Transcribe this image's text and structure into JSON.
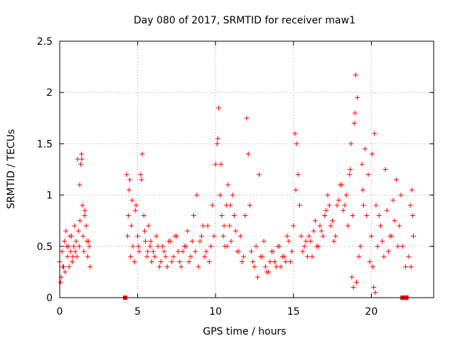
{
  "chart_data": {
    "type": "scatter",
    "title": "Day 080 of 2017, SRMTID for receiver maw1",
    "xlabel": "GPS time / hours",
    "ylabel": "SRMTID / TECUs",
    "xlim": [
      0,
      24
    ],
    "ylim": [
      0,
      2.5
    ],
    "grid": true,
    "marker": "plus",
    "color": "#ff0000",
    "x_ticks": [
      0,
      5,
      10,
      15,
      20
    ],
    "x_tick_labels": [
      "0",
      "5",
      "10",
      "15",
      "20"
    ],
    "y_ticks": [
      0,
      0.5,
      1,
      1.5,
      2,
      2.5
    ],
    "y_tick_labels": [
      "0",
      "0.5",
      "1",
      "1.5",
      "2",
      "2.5"
    ],
    "series": [
      {
        "name": "SRMTID",
        "x": [
          0.0,
          0.1,
          0.15,
          0.2,
          0.3,
          0.35,
          0.4,
          0.5,
          0.55,
          0.6,
          0.7,
          0.75,
          0.8,
          0.9,
          0.95,
          1.0,
          1.05,
          1.1,
          1.2,
          1.25,
          1.3,
          1.35,
          1.4,
          1.45,
          1.5,
          1.55,
          1.6,
          1.7,
          1.75,
          1.8,
          1.9,
          1.95,
          4.3,
          4.35,
          4.4,
          4.5,
          4.55,
          4.6,
          4.7,
          4.8,
          4.9,
          5.0,
          5.1,
          5.2,
          5.3,
          5.4,
          5.5,
          5.6,
          5.7,
          5.8,
          5.9,
          6.0,
          6.2,
          6.4,
          6.6,
          6.8,
          7.0,
          7.2,
          7.4,
          7.6,
          7.8,
          8.0,
          8.2,
          8.4,
          8.6,
          8.8,
          9.0,
          9.2,
          9.4,
          9.6,
          9.8,
          10.0,
          10.1,
          10.2,
          10.3,
          10.4,
          10.5,
          10.6,
          10.7,
          10.8,
          10.9,
          11.0,
          11.2,
          11.4,
          11.6,
          11.8,
          12.0,
          12.1,
          12.2,
          12.4,
          12.6,
          12.8,
          13.0,
          13.2,
          13.4,
          13.6,
          13.8,
          14.0,
          14.2,
          14.4,
          14.6,
          14.8,
          15.0,
          15.1,
          15.2,
          15.3,
          15.4,
          15.6,
          15.8,
          16.0,
          16.2,
          16.4,
          16.6,
          16.8,
          17.0,
          17.2,
          17.4,
          17.6,
          17.8,
          18.0,
          18.2,
          18.4,
          18.6,
          18.7,
          18.8,
          18.9,
          19.0,
          19.1,
          19.2,
          19.4,
          19.5,
          19.6,
          19.8,
          20.0,
          20.1,
          20.2,
          20.3,
          20.4,
          20.6,
          20.8,
          21.0,
          21.2,
          21.4,
          21.6,
          21.8,
          21.9,
          22.0,
          22.2,
          22.4,
          22.5,
          22.6,
          22.7,
          0.05,
          0.25,
          0.45,
          0.65,
          0.85,
          1.15,
          1.28,
          1.42,
          1.62,
          1.85,
          4.45,
          4.65,
          4.85,
          5.05,
          5.25,
          5.45,
          5.65,
          5.85,
          6.1,
          6.3,
          6.5,
          6.7,
          6.9,
          7.1,
          7.3,
          7.5,
          7.7,
          7.9,
          8.1,
          8.3,
          8.5,
          8.7,
          8.9,
          9.1,
          9.3,
          9.5,
          9.7,
          9.9,
          10.15,
          10.35,
          10.55,
          10.75,
          10.95,
          11.1,
          11.3,
          11.5,
          11.7,
          11.9,
          12.3,
          12.5,
          12.7,
          12.9,
          13.1,
          13.3,
          13.5,
          13.7,
          13.9,
          14.1,
          14.3,
          14.5,
          14.7,
          14.9,
          15.15,
          15.5,
          15.7,
          15.9,
          16.1,
          16.3,
          16.5,
          16.7,
          16.9,
          17.1,
          17.3,
          17.5,
          17.7,
          17.9,
          18.1,
          18.3,
          18.5,
          18.65,
          18.75,
          18.85,
          18.95,
          19.05,
          19.3,
          19.45,
          19.7,
          19.9,
          20.05,
          20.15,
          20.25,
          20.5,
          20.7,
          20.9,
          21.1,
          21.3,
          21.5,
          21.7,
          22.1,
          22.3,
          22.55,
          22.65
        ],
        "y": [
          0.35,
          0.2,
          0.45,
          0.3,
          0.55,
          0.25,
          0.65,
          0.4,
          0.5,
          0.3,
          0.45,
          0.6,
          0.35,
          0.5,
          0.7,
          0.45,
          0.55,
          0.4,
          0.65,
          0.5,
          0.75,
          1.3,
          1.4,
          0.9,
          0.6,
          0.45,
          0.8,
          0.7,
          0.55,
          0.4,
          0.5,
          0.3,
          1.2,
          0.6,
          0.8,
          1.15,
          0.4,
          0.7,
          0.5,
          0.35,
          0.9,
          0.6,
          0.45,
          1.2,
          1.4,
          0.8,
          0.55,
          0.4,
          0.7,
          0.5,
          0.35,
          0.45,
          0.6,
          0.3,
          0.5,
          0.4,
          0.55,
          0.35,
          0.6,
          0.45,
          0.3,
          0.5,
          0.65,
          0.4,
          0.8,
          1.0,
          0.55,
          0.7,
          0.45,
          0.35,
          0.9,
          1.3,
          1.5,
          1.85,
          1.0,
          0.8,
          0.6,
          0.5,
          0.9,
          1.1,
          0.7,
          0.55,
          0.8,
          0.45,
          0.6,
          0.4,
          1.75,
          1.4,
          0.9,
          0.35,
          0.5,
          1.2,
          0.4,
          0.3,
          0.25,
          0.45,
          0.35,
          0.5,
          0.3,
          0.4,
          0.6,
          0.35,
          0.7,
          1.6,
          1.5,
          1.2,
          0.9,
          0.45,
          0.55,
          0.6,
          0.4,
          0.75,
          0.5,
          0.65,
          0.8,
          1.0,
          0.7,
          0.55,
          0.9,
          1.1,
          0.85,
          1.0,
          1.2,
          1.5,
          0.8,
          1.7,
          2.17,
          1.95,
          0.4,
          1.3,
          0.9,
          1.45,
          1.2,
          0.6,
          0.3,
          1.6,
          0.9,
          0.5,
          0.7,
          0.4,
          0.85,
          0.6,
          0.95,
          1.15,
          0.7,
          1.0,
          0.5,
          0.3,
          0.4,
          0.9,
          1.05,
          0.6,
          0.15,
          0.3,
          0.5,
          0.6,
          0.4,
          1.35,
          1.1,
          1.35,
          0.85,
          0.55,
          1.05,
          0.95,
          0.85,
          0.5,
          1.15,
          0.65,
          0.45,
          0.55,
          0.4,
          0.5,
          0.35,
          0.45,
          0.3,
          0.55,
          0.4,
          0.6,
          0.35,
          0.45,
          0.5,
          0.35,
          0.55,
          0.45,
          0.3,
          0.6,
          0.4,
          0.7,
          0.5,
          0.6,
          1.55,
          1.3,
          0.7,
          0.5,
          0.9,
          1.0,
          0.65,
          0.45,
          0.35,
          0.8,
          0.45,
          0.3,
          0.2,
          0.4,
          0.55,
          0.25,
          0.35,
          0.45,
          0.3,
          0.5,
          0.4,
          0.35,
          0.55,
          0.45,
          1.05,
          0.6,
          0.5,
          0.4,
          0.55,
          0.65,
          0.5,
          0.7,
          0.6,
          0.85,
          0.9,
          0.75,
          0.6,
          0.95,
          1.1,
          0.9,
          0.7,
          1.25,
          0.2,
          0.1,
          1.8,
          0.15,
          0.5,
          1.05,
          0.8,
          0.35,
          1.4,
          0.1,
          0.05,
          0.8,
          0.55,
          1.25,
          0.45,
          0.6,
          0.75,
          0.5,
          0.0,
          0.0,
          0.3,
          0.8
        ],
        "zero_points_x": [
          4.2,
          22.0,
          22.25
        ]
      }
    ]
  }
}
